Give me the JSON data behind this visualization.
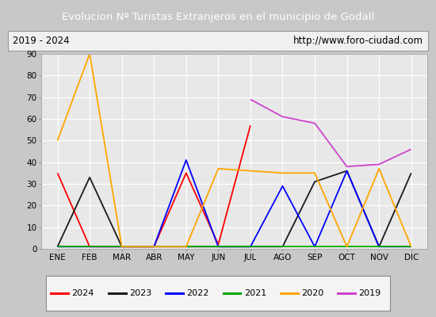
{
  "title": "Evolucion Nº Turistas Extranjeros en el municipio de Godall",
  "subtitle_left": "2019 - 2024",
  "subtitle_right": "http://www.foro-ciudad.com",
  "months": [
    "ENE",
    "FEB",
    "MAR",
    "ABR",
    "MAY",
    "JUN",
    "JUL",
    "AGO",
    "SEP",
    "OCT",
    "NOV",
    "DIC"
  ],
  "series": {
    "2024": [
      35,
      1,
      1,
      1,
      35,
      2,
      57,
      null,
      null,
      null,
      null,
      null
    ],
    "2023": [
      1,
      33,
      1,
      1,
      1,
      1,
      1,
      1,
      31,
      36,
      1,
      35
    ],
    "2022": [
      1,
      1,
      1,
      1,
      41,
      1,
      1,
      29,
      1,
      36,
      1,
      1
    ],
    "2021": [
      1,
      1,
      1,
      1,
      1,
      1,
      1,
      1,
      1,
      1,
      1,
      1
    ],
    "2020": [
      50,
      90,
      1,
      1,
      1,
      37,
      36,
      35,
      35,
      1,
      37,
      1
    ],
    "2019": [
      null,
      null,
      null,
      null,
      null,
      null,
      69,
      61,
      58,
      38,
      39,
      46
    ]
  },
  "colors": {
    "2024": "#ff0000",
    "2023": "#1a1a1a",
    "2022": "#0000ff",
    "2021": "#00aa00",
    "2020": "#ffa500",
    "2019": "#cc44cc"
  },
  "ylim": [
    0,
    90
  ],
  "yticks": [
    0,
    10,
    20,
    30,
    40,
    50,
    60,
    70,
    80,
    90
  ],
  "title_bg": "#4472c4",
  "title_color": "#ffffff",
  "outer_bg": "#c8c8c8",
  "inner_bg": "#f0f0f0",
  "plot_bg": "#e8e8e8",
  "grid_color": "#ffffff",
  "legend_order": [
    "2024",
    "2023",
    "2022",
    "2021",
    "2020",
    "2019"
  ]
}
